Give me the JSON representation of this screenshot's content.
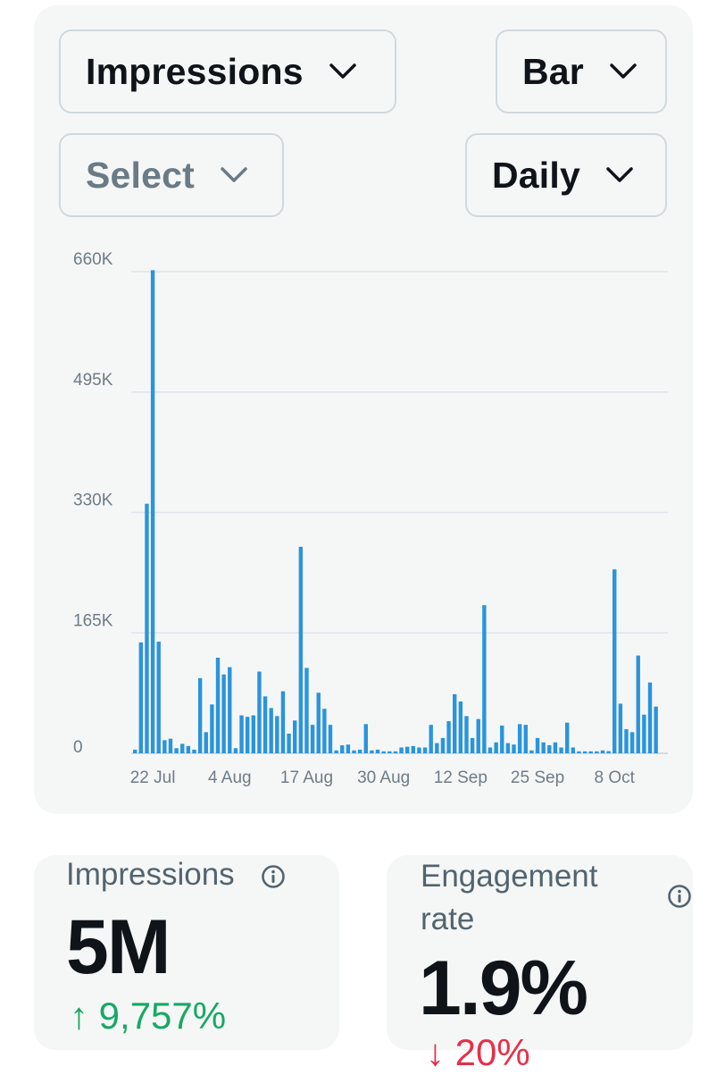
{
  "controls": {
    "metric_label": "Impressions",
    "chart_type_label": "Bar",
    "filter_label": "Select",
    "interval_label": "Daily"
  },
  "colors": {
    "bar": "#2b94dc",
    "gridline": "#dde3ec",
    "up": "#17a865",
    "down": "#e5304a"
  },
  "chart_data": {
    "type": "bar",
    "title": "",
    "xlabel": "",
    "ylabel": "",
    "ylim": [
      0,
      660000
    ],
    "y_ticks": [
      {
        "value": 0,
        "label": "0"
      },
      {
        "value": 165000,
        "label": "165K"
      },
      {
        "value": 330000,
        "label": "330K"
      },
      {
        "value": 495000,
        "label": "495K"
      },
      {
        "value": 660000,
        "label": "660K"
      }
    ],
    "x_ticks": [
      {
        "index": 3,
        "label": "22 Jul"
      },
      {
        "index": 16,
        "label": "4 Aug"
      },
      {
        "index": 29,
        "label": "17 Aug"
      },
      {
        "index": 42,
        "label": "30 Aug"
      },
      {
        "index": 55,
        "label": "12 Sep"
      },
      {
        "index": 68,
        "label": "25 Sep"
      },
      {
        "index": 81,
        "label": "8 Oct"
      }
    ],
    "series": [
      {
        "values": [
          5000,
          152000,
          342000,
          662000,
          153000,
          18000,
          20000,
          7000,
          13000,
          10000,
          5000,
          103000,
          29000,
          67000,
          131000,
          108000,
          118000,
          7000,
          52000,
          50000,
          52000,
          112000,
          78000,
          62000,
          51000,
          85000,
          27000,
          45000,
          283000,
          117000,
          39000,
          83000,
          61000,
          39000,
          4000,
          11000,
          12000,
          4000,
          5000,
          40000,
          4000,
          5000,
          2000,
          2000,
          2000,
          8000,
          9000,
          10000,
          8000,
          8000,
          39000,
          14000,
          21000,
          44000,
          81000,
          71000,
          51000,
          21000,
          47000,
          203000,
          8000,
          15000,
          38000,
          14000,
          12000,
          40000,
          39000,
          4000,
          21000,
          15000,
          11000,
          15000,
          8000,
          42000,
          8000,
          2000,
          2000,
          2000,
          2000,
          4000,
          3000,
          252000,
          68000,
          33000,
          29000,
          134000,
          53000,
          97000,
          64000
        ]
      }
    ]
  },
  "metrics": [
    {
      "title": "Impressions",
      "value": "5M",
      "change": "↑ 9,757%"
    },
    {
      "title": "Engagement rate",
      "value": "1.9%",
      "change": "↓ 20%"
    }
  ]
}
